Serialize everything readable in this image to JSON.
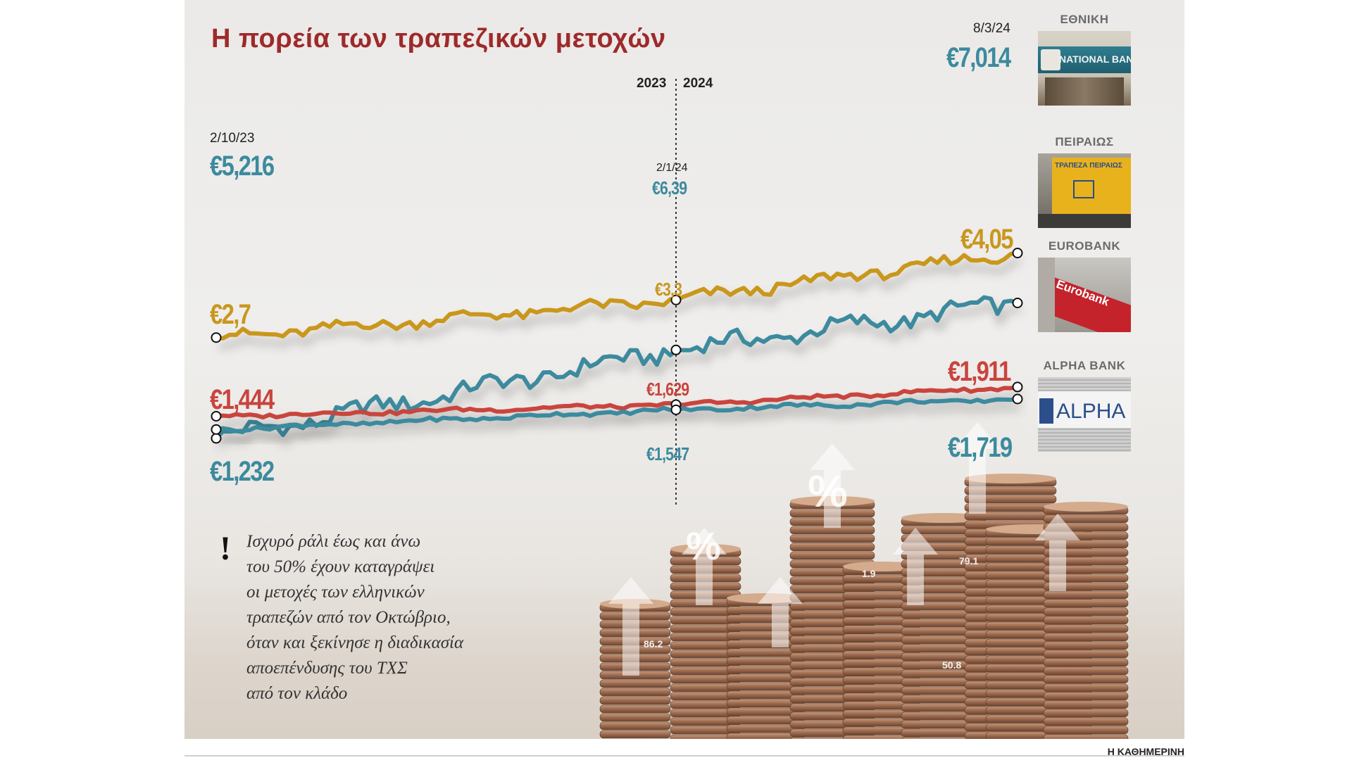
{
  "title": "Η πορεία των τραπεζικών μετοχών",
  "labels": {
    "year_left": "2023",
    "year_right": "2024",
    "date_start": "2/10/23",
    "date_mid": "2/1/24",
    "date_end": "8/3/24"
  },
  "chart_data": {
    "type": "line",
    "x_range": [
      "2/10/23",
      "8/3/24"
    ],
    "divider_date": "2/1/24",
    "series": [
      {
        "name": "ΕΘΝΙΚΗ",
        "color": "#3d8a9e",
        "start": "€5,216",
        "mid": "€6,39",
        "end": "€7,014",
        "values": [
          5.216,
          6.39,
          7.014
        ]
      },
      {
        "name": "ΠΕΙΡΑΙΩΣ",
        "color": "#c9971e",
        "start": "€2,7",
        "mid": "€3,3",
        "end": "€4,05",
        "values": [
          2.7,
          3.3,
          4.05
        ]
      },
      {
        "name": "EUROBANK",
        "color": "#c9443e",
        "start": "€1,444",
        "mid": "€1,629",
        "end": "€1,911",
        "values": [
          1.444,
          1.629,
          1.911
        ]
      },
      {
        "name": "ALPHA BANK",
        "color": "#3d8a9e",
        "start": "€1,232",
        "mid": "€1,547",
        "end": "€1,719",
        "values": [
          1.232,
          1.547,
          1.719
        ]
      }
    ]
  },
  "banks": [
    {
      "name": "ΕΘΝΙΚΗ",
      "sign": "NATIONAL BANK"
    },
    {
      "name": "ΠΕΙΡΑΙΩΣ",
      "sign": "ΤΡΑΠΕΖΑ ΠΕΙΡΑΙΩΣ"
    },
    {
      "name": "EUROBANK",
      "sign": "Eurobank"
    },
    {
      "name": "ALPHA BANK",
      "sign": "ALPHA BA"
    }
  ],
  "note": [
    "Ισχυρό ράλι έως και άνω",
    "του 50% έχουν καταγράψει",
    "οι μετοχές των ελληνικών",
    "τραπεζών από τον Οκτώβριο,",
    "όταν και ξεκίνησε η διαδικασία",
    "αποεπένδυσης του ΤΧΣ",
    "από τον κλάδο"
  ],
  "credit": "Η ΚΑΘΗΜΕΡΙΝΗ",
  "decor": {
    "pct": "%",
    "tick_a": "1.9",
    "tick_b": "79.1",
    "tick_c": "86.2",
    "tick_d": "50.8"
  }
}
